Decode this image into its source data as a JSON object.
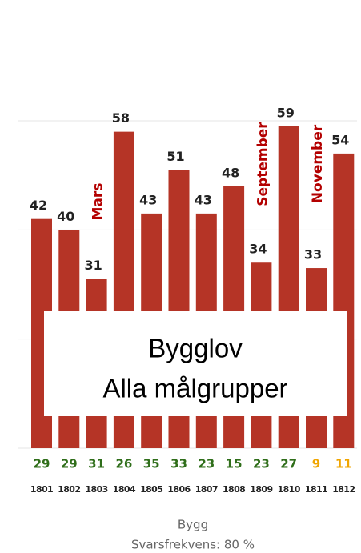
{
  "chart_data": {
    "type": "bar",
    "categories": [
      "1801",
      "1802",
      "1803",
      "1804",
      "1805",
      "1806",
      "1807",
      "1808",
      "1809",
      "1810",
      "1811",
      "1812"
    ],
    "values": [
      42,
      40,
      31,
      58,
      43,
      51,
      43,
      48,
      34,
      59,
      33,
      54
    ],
    "color": "#b53426",
    "ylim": [
      0,
      60
    ],
    "yticks": [
      0,
      20,
      40,
      60
    ],
    "grid": true,
    "response_counts": {
      "values": [
        29,
        29,
        31,
        26,
        35,
        33,
        23,
        15,
        23,
        27,
        9,
        11
      ],
      "colors": [
        "#2f6e1a",
        "#2f6e1a",
        "#2f6e1a",
        "#2f6e1a",
        "#2f6e1a",
        "#2f6e1a",
        "#2f6e1a",
        "#2f6e1a",
        "#2f6e1a",
        "#2f6e1a",
        "#f0a500",
        "#f0a500"
      ]
    },
    "annotations": [
      {
        "text": "Mars",
        "category": "1803"
      },
      {
        "text": "September",
        "category": "1809"
      },
      {
        "text": "November",
        "category": "1811"
      }
    ],
    "overlay": [
      "Bygglov",
      "Alla målgrupper"
    ],
    "footer": [
      "Bygg",
      "Svarsfrekvens: 80 %"
    ]
  }
}
